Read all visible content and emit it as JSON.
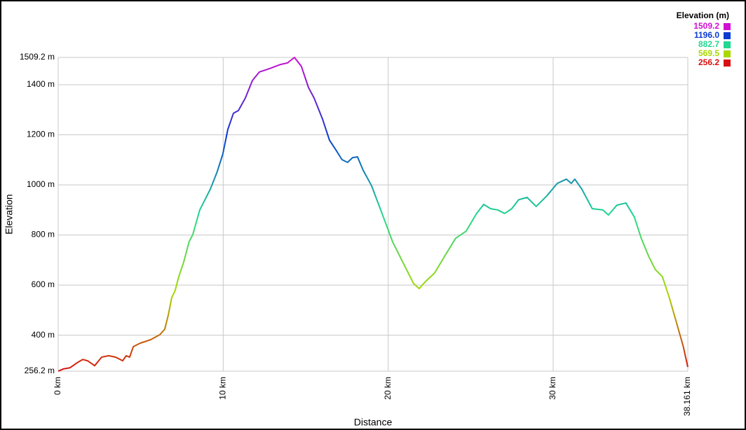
{
  "chart_data": {
    "type": "line",
    "xlabel": "Distance",
    "ylabel": "Elevation",
    "x": [
      0,
      0.3,
      0.72,
      1.15,
      1.49,
      1.78,
      2.21,
      2.63,
      3.06,
      3.48,
      3.91,
      4.12,
      4.33,
      4.55,
      4.97,
      5.61,
      6.16,
      6.46,
      6.67,
      6.88,
      7.09,
      7.31,
      7.6,
      7.94,
      8.16,
      8.58,
      9.22,
      9.64,
      9.98,
      10.28,
      10.62,
      10.92,
      11.34,
      11.77,
      12.19,
      12.83,
      13.47,
      13.89,
      14.32,
      14.74,
      15.17,
      15.51,
      16.02,
      16.44,
      16.86,
      17.2,
      17.54,
      17.84,
      18.14,
      18.48,
      18.99,
      19.63,
      20.26,
      20.9,
      21.54,
      21.88,
      22.26,
      22.81,
      23.45,
      24.09,
      24.72,
      25.36,
      25.79,
      26.21,
      26.64,
      27.06,
      27.49,
      27.91,
      28.42,
      28.97,
      29.61,
      30.25,
      30.8,
      31.1,
      31.31,
      31.73,
      32.37,
      33.01,
      33.35,
      33.86,
      34.41,
      34.92,
      35.34,
      35.77,
      36.19,
      36.62,
      37.04,
      37.47,
      37.89,
      38.161
    ],
    "series": [
      {
        "values": [
          256.2,
          265,
          270,
          290,
          303,
          298,
          278,
          312,
          318,
          312,
          298,
          318,
          312,
          354,
          368,
          382,
          402,
          424,
          480,
          550,
          578,
          634,
          690,
          774,
          802,
          900,
          983,
          1053,
          1123,
          1221,
          1286,
          1297,
          1347,
          1417,
          1451,
          1465,
          1481,
          1487,
          1509.2,
          1473,
          1389,
          1347,
          1263,
          1179,
          1137,
          1101,
          1090,
          1109,
          1112,
          1059,
          997,
          886,
          774,
          690,
          606,
          586,
          614,
          648,
          718,
          787,
          815,
          886,
          922,
          905,
          900,
          886,
          905,
          941,
          950,
          914,
          956,
          1006,
          1023,
          1006,
          1023,
          984,
          905,
          900,
          880,
          919,
          928,
          872,
          787,
          718,
          662,
          634,
          550,
          452,
          354,
          273
        ]
      }
    ],
    "xlim": [
      0,
      38.161
    ],
    "xticks": [
      {
        "value": 0,
        "label": "0 km"
      },
      {
        "value": 10,
        "label": "10 km"
      },
      {
        "value": 20,
        "label": "20 km"
      },
      {
        "value": 30,
        "label": "30 km"
      },
      {
        "value": 38.161,
        "label": "38.161 km"
      }
    ],
    "ylim": [
      256.2,
      1509.2
    ],
    "yticks": [
      {
        "value": 256.2,
        "label": "256.2 m"
      },
      {
        "value": 400,
        "label": "400 m"
      },
      {
        "value": 600,
        "label": "600 m"
      },
      {
        "value": 800,
        "label": "800 m"
      },
      {
        "value": 1000,
        "label": "1000 m"
      },
      {
        "value": 1200,
        "label": "1200 m"
      },
      {
        "value": 1400,
        "label": "1400 m"
      },
      {
        "value": 1509.2,
        "label": "1509.2 m"
      }
    ],
    "grid": true,
    "legend": {
      "title": "Elevation (m)",
      "position": "top-right",
      "entries": [
        {
          "value": 1509.2,
          "label": "1509.2",
          "color": "#d010d0"
        },
        {
          "value": 1196.0,
          "label": "1196.0",
          "color": "#0a3ad0"
        },
        {
          "value": 882.7,
          "label": "882.7",
          "color": "#20d890"
        },
        {
          "value": 569.5,
          "label": "569.5",
          "color": "#a8d800"
        },
        {
          "value": 256.2,
          "label": "256.2",
          "color": "#d81010"
        }
      ]
    }
  }
}
